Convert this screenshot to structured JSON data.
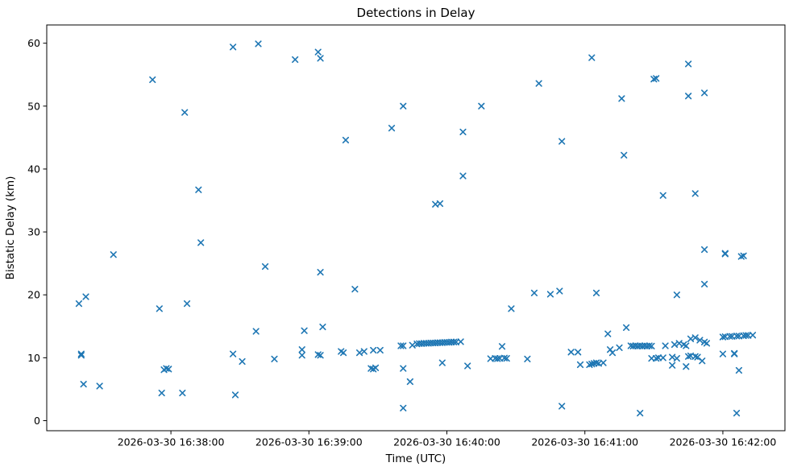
{
  "figure": {
    "background": "#ffffff",
    "plot_border_color": "#000000"
  },
  "chart_data": {
    "type": "scatter",
    "title": "Detections in Delay",
    "xlabel": "Time (UTC)",
    "ylabel": "Bistatic Delay (km)",
    "grid": false,
    "legend": null,
    "marker": {
      "shape": "x",
      "color": "#1f77b4",
      "size": 7,
      "stroke_width": 1.6
    },
    "x_axis": {
      "kind": "time",
      "date": "2026-03-30",
      "lim": [
        "16:37:06",
        "16:42:27"
      ],
      "ticks": [
        {
          "time": "16:38:00",
          "label": "2026-03-30 16:38:00"
        },
        {
          "time": "16:39:00",
          "label": "2026-03-30 16:39:00"
        },
        {
          "time": "16:40:00",
          "label": "2026-03-30 16:40:00"
        },
        {
          "time": "16:41:00",
          "label": "2026-03-30 16:41:00"
        },
        {
          "time": "16:42:00",
          "label": "2026-03-30 16:42:00"
        }
      ]
    },
    "y_axis": {
      "lim": [
        -1.6,
        62.9
      ],
      "ticks": [
        0,
        10,
        20,
        30,
        40,
        50,
        60
      ]
    },
    "points": [
      [
        "16:37:20",
        18.6
      ],
      [
        "16:37:21",
        10.6
      ],
      [
        "16:37:21",
        10.4
      ],
      [
        "16:37:22",
        5.8
      ],
      [
        "16:37:23",
        19.7
      ],
      [
        "16:37:29",
        5.5
      ],
      [
        "16:37:35",
        26.4
      ],
      [
        "16:37:52",
        54.2
      ],
      [
        "16:37:55",
        17.8
      ],
      [
        "16:37:56",
        4.4
      ],
      [
        "16:37:57",
        8.1
      ],
      [
        "16:37:58",
        8.3
      ],
      [
        "16:37:59",
        8.2
      ],
      [
        "16:38:05",
        4.4
      ],
      [
        "16:38:06",
        49.0
      ],
      [
        "16:38:07",
        18.6
      ],
      [
        "16:38:12",
        36.7
      ],
      [
        "16:38:13",
        28.3
      ],
      [
        "16:38:27",
        59.4
      ],
      [
        "16:38:27",
        10.6
      ],
      [
        "16:38:28",
        4.1
      ],
      [
        "16:38:31",
        9.4
      ],
      [
        "16:38:37",
        14.2
      ],
      [
        "16:38:38",
        59.9
      ],
      [
        "16:38:41",
        24.5
      ],
      [
        "16:38:45",
        9.8
      ],
      [
        "16:38:54",
        57.4
      ],
      [
        "16:38:57",
        11.3
      ],
      [
        "16:38:57",
        10.4
      ],
      [
        "16:38:58",
        14.3
      ],
      [
        "16:39:04",
        58.6
      ],
      [
        "16:39:04",
        10.5
      ],
      [
        "16:39:05",
        57.6
      ],
      [
        "16:39:05",
        23.6
      ],
      [
        "16:39:05",
        10.4
      ],
      [
        "16:39:06",
        14.9
      ],
      [
        "16:39:14",
        11.0
      ],
      [
        "16:39:15",
        10.8
      ],
      [
        "16:39:16",
        44.6
      ],
      [
        "16:39:20",
        20.9
      ],
      [
        "16:39:22",
        10.8
      ],
      [
        "16:39:24",
        11.0
      ],
      [
        "16:39:27",
        8.3
      ],
      [
        "16:39:28",
        8.2
      ],
      [
        "16:39:28",
        11.2
      ],
      [
        "16:39:29",
        8.4
      ],
      [
        "16:39:31",
        11.2
      ],
      [
        "16:39:36",
        46.5
      ],
      [
        "16:39:40",
        11.9
      ],
      [
        "16:39:41",
        11.9
      ],
      [
        "16:39:41",
        50.0
      ],
      [
        "16:39:41",
        8.3
      ],
      [
        "16:39:41",
        2.0
      ],
      [
        "16:39:44",
        6.2
      ],
      [
        "16:39:45",
        12.0
      ],
      [
        "16:39:47",
        12.2
      ],
      [
        "16:39:48",
        12.25
      ],
      [
        "16:39:49",
        12.25
      ],
      [
        "16:39:50",
        12.3
      ],
      [
        "16:39:51",
        12.3
      ],
      [
        "16:39:52",
        12.3
      ],
      [
        "16:39:53",
        12.35
      ],
      [
        "16:39:54",
        12.35
      ],
      [
        "16:39:55",
        12.35
      ],
      [
        "16:39:55",
        34.4
      ],
      [
        "16:39:56",
        12.4
      ],
      [
        "16:39:57",
        12.4
      ],
      [
        "16:39:57",
        34.5
      ],
      [
        "16:39:58",
        12.4
      ],
      [
        "16:39:58",
        9.2
      ],
      [
        "16:39:59",
        12.45
      ],
      [
        "16:40:00",
        12.45
      ],
      [
        "16:40:01",
        12.45
      ],
      [
        "16:40:02",
        12.5
      ],
      [
        "16:40:03",
        12.5
      ],
      [
        "16:40:04",
        12.5
      ],
      [
        "16:40:06",
        12.55
      ],
      [
        "16:40:07",
        45.9
      ],
      [
        "16:40:07",
        38.9
      ],
      [
        "16:40:09",
        8.7
      ],
      [
        "16:40:15",
        50.0
      ],
      [
        "16:40:19",
        9.85
      ],
      [
        "16:40:21",
        9.9
      ],
      [
        "16:40:22",
        9.85
      ],
      [
        "16:40:23",
        9.9
      ],
      [
        "16:40:24",
        11.8
      ],
      [
        "16:40:25",
        9.95
      ],
      [
        "16:40:26",
        9.9
      ],
      [
        "16:40:28",
        17.8
      ],
      [
        "16:40:35",
        9.8
      ],
      [
        "16:40:38",
        20.3
      ],
      [
        "16:40:40",
        53.6
      ],
      [
        "16:40:45",
        20.1
      ],
      [
        "16:40:49",
        20.6
      ],
      [
        "16:40:50",
        44.4
      ],
      [
        "16:40:50",
        2.3
      ],
      [
        "16:40:54",
        10.9
      ],
      [
        "16:40:57",
        10.9
      ],
      [
        "16:40:58",
        8.9
      ],
      [
        "16:41:02",
        8.9
      ],
      [
        "16:41:03",
        57.7
      ],
      [
        "16:41:03",
        9.0
      ],
      [
        "16:41:04",
        9.1
      ],
      [
        "16:41:05",
        20.3
      ],
      [
        "16:41:05",
        9.2
      ],
      [
        "16:41:06",
        9.1
      ],
      [
        "16:41:08",
        9.2
      ],
      [
        "16:41:10",
        13.8
      ],
      [
        "16:41:11",
        11.3
      ],
      [
        "16:41:12",
        10.8
      ],
      [
        "16:41:15",
        11.6
      ],
      [
        "16:41:16",
        51.2
      ],
      [
        "16:41:17",
        42.2
      ],
      [
        "16:41:18",
        14.8
      ],
      [
        "16:41:20",
        11.9
      ],
      [
        "16:41:21",
        11.85
      ],
      [
        "16:41:22",
        11.9
      ],
      [
        "16:41:23",
        11.85
      ],
      [
        "16:41:24",
        11.9
      ],
      [
        "16:41:24",
        1.2
      ],
      [
        "16:41:25",
        11.85
      ],
      [
        "16:41:26",
        11.9
      ],
      [
        "16:41:27",
        11.85
      ],
      [
        "16:41:28",
        11.9
      ],
      [
        "16:41:29",
        11.85
      ],
      [
        "16:41:29",
        9.9
      ],
      [
        "16:41:30",
        54.3
      ],
      [
        "16:41:31",
        54.4
      ],
      [
        "16:41:31",
        9.9
      ],
      [
        "16:41:32",
        10.0
      ],
      [
        "16:41:34",
        35.8
      ],
      [
        "16:41:34",
        10.0
      ],
      [
        "16:41:35",
        11.9
      ],
      [
        "16:41:38",
        10.1
      ],
      [
        "16:41:38",
        8.8
      ],
      [
        "16:41:39",
        12.1
      ],
      [
        "16:41:40",
        20.0
      ],
      [
        "16:41:40",
        9.9
      ],
      [
        "16:41:41",
        12.3
      ],
      [
        "16:41:43",
        12.1
      ],
      [
        "16:41:44",
        11.9
      ],
      [
        "16:41:44",
        8.6
      ],
      [
        "16:41:45",
        56.7
      ],
      [
        "16:41:45",
        51.6
      ],
      [
        "16:41:45",
        10.2
      ],
      [
        "16:41:46",
        13.0
      ],
      [
        "16:41:46",
        10.3
      ],
      [
        "16:41:48",
        13.2
      ],
      [
        "16:41:48",
        36.1
      ],
      [
        "16:41:48",
        10.2
      ],
      [
        "16:41:49",
        10.1
      ],
      [
        "16:41:50",
        12.8
      ],
      [
        "16:41:51",
        9.5
      ],
      [
        "16:41:52",
        52.1
      ],
      [
        "16:41:52",
        27.2
      ],
      [
        "16:41:52",
        21.7
      ],
      [
        "16:41:52",
        12.5
      ],
      [
        "16:41:53",
        12.3
      ],
      [
        "16:42:00",
        13.3
      ],
      [
        "16:42:00",
        10.6
      ],
      [
        "16:42:01",
        26.6
      ],
      [
        "16:42:01",
        26.5
      ],
      [
        "16:42:01",
        13.35
      ],
      [
        "16:42:03",
        13.4
      ],
      [
        "16:42:04",
        13.4
      ],
      [
        "16:42:05",
        10.7
      ],
      [
        "16:42:05",
        10.6
      ],
      [
        "16:42:06",
        13.45
      ],
      [
        "16:42:06",
        1.2
      ],
      [
        "16:42:07",
        13.45
      ],
      [
        "16:42:07",
        8.0
      ],
      [
        "16:42:08",
        26.1
      ],
      [
        "16:42:09",
        26.2
      ],
      [
        "16:42:09",
        13.5
      ],
      [
        "16:42:10",
        13.55
      ],
      [
        "16:42:11",
        13.55
      ],
      [
        "16:42:13",
        13.6
      ]
    ]
  }
}
